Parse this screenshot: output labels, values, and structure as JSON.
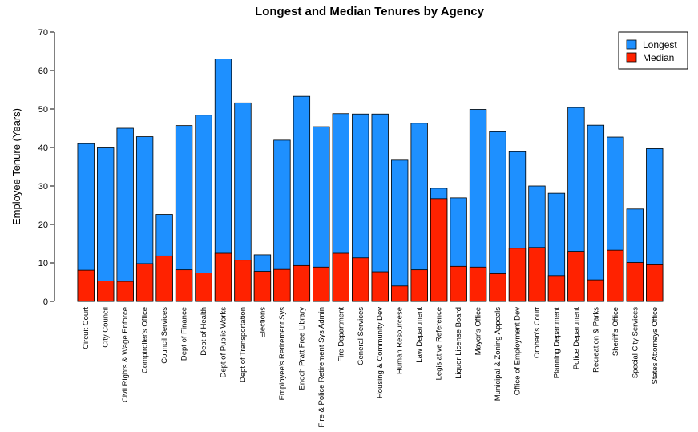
{
  "chart_data": {
    "type": "bar",
    "title": "Longest and Median Tenures by Agency",
    "xlabel": "",
    "ylabel": "Employee Tenure (Years)",
    "ylim": [
      0,
      70
    ],
    "yticks": [
      0,
      10,
      20,
      30,
      40,
      50,
      60,
      70
    ],
    "grid": false,
    "legend_position": "top-right",
    "categories": [
      "Circuit Court",
      "City Council",
      "Civil Rights & Wage Enforce",
      "Comptroller's Office",
      "Council Services",
      "Dept of Finance",
      "Dept of Health",
      "Dept of Public Works",
      "Dept of Transportation",
      "Elections",
      "Employee's Retirement Sys",
      "Enoch Pratt Free Library",
      "Fire & Police Retirement Sys Admin",
      "Fire Department",
      "General Services",
      "Housing & Community Dev",
      "Human Resourcese",
      "Law Department",
      "Legislative Reference",
      "Liquor License Board",
      "Mayor's Office",
      "Municipal & Zoning Appeals",
      "Office of Employment Dev",
      "Orphan's Court",
      "Planning Department",
      "Police Department",
      "Recreation & Parks",
      "Sheriff's Office",
      "Special City Services",
      "States Attorneys Office"
    ],
    "series": [
      {
        "name": "Longest",
        "color": "#1e90ff",
        "values": [
          41.0,
          39.9,
          45.0,
          42.8,
          22.6,
          45.7,
          48.4,
          63.0,
          51.6,
          12.1,
          41.9,
          53.3,
          45.4,
          48.8,
          48.7,
          48.7,
          36.7,
          46.3,
          29.4,
          26.9,
          49.9,
          44.1,
          38.9,
          30.0,
          28.1,
          50.4,
          45.8,
          42.7,
          24.0,
          39.7
        ]
      },
      {
        "name": "Median",
        "color": "#ff2200",
        "values": [
          8.1,
          5.3,
          5.2,
          9.8,
          11.8,
          8.2,
          7.4,
          12.5,
          10.7,
          7.8,
          8.3,
          9.3,
          8.9,
          12.5,
          11.3,
          7.7,
          4.0,
          8.2,
          26.7,
          9.1,
          8.9,
          7.2,
          13.8,
          14.0,
          6.7,
          13.0,
          5.6,
          13.3,
          10.1,
          9.5
        ]
      }
    ]
  }
}
